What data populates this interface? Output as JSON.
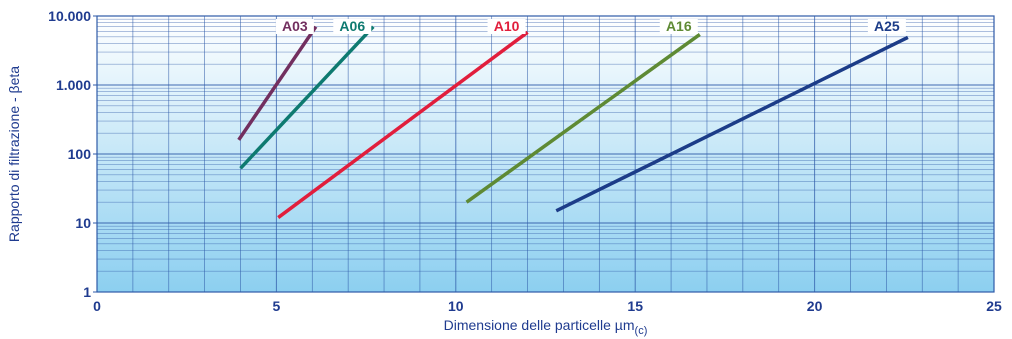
{
  "chart_data": {
    "type": "line",
    "xlabel": "Dimensione delle particelle µm",
    "xlabel_subscript": "(c)",
    "ylabel": "Rapporto di filtrazione - βeta",
    "xlim": [
      0,
      25
    ],
    "ylim": [
      1,
      10000
    ],
    "y_scale": "log",
    "grid": true,
    "x_ticks": [
      0,
      5,
      10,
      15,
      20,
      25
    ],
    "y_ticks": [
      1,
      10,
      100,
      1000,
      10000
    ],
    "y_tick_labels": [
      "1",
      "10",
      "100",
      "1.000",
      "10.000"
    ],
    "colors": {
      "axis_text": "#1f3b8f",
      "frame": "#2e5aa8",
      "grid": "#2e5aa8",
      "gradient_top": "#ffffff",
      "gradient_bottom": "#8ccff0"
    },
    "series": [
      {
        "name": "A03",
        "color": "#722f5f",
        "x": [
          3.95,
          6.1
        ],
        "y": [
          160,
          7000
        ]
      },
      {
        "name": "A06",
        "color": "#0e7a70",
        "x": [
          4.0,
          7.7
        ],
        "y": [
          62,
          7000
        ]
      },
      {
        "name": "A10",
        "color": "#e11e3c",
        "x": [
          5.05,
          12.0
        ],
        "y": [
          12,
          5800
        ]
      },
      {
        "name": "A16",
        "color": "#5e8a34",
        "x": [
          10.3,
          16.8
        ],
        "y": [
          20,
          5400
        ]
      },
      {
        "name": "A25",
        "color": "#1c3c88",
        "x": [
          12.8,
          22.6
        ],
        "y": [
          15,
          4900
        ]
      }
    ]
  }
}
